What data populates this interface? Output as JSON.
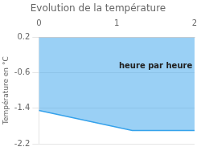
{
  "chart_data": {
    "type": "area",
    "title": "Evolution de la température",
    "ylabel": "Température en °C",
    "annotation": {
      "text": "heure par heure",
      "x": 1.5,
      "y": -0.45
    },
    "x": [
      0,
      1.2,
      2.0
    ],
    "values": [
      -1.45,
      -1.9,
      -1.9
    ],
    "y_top": 0.2,
    "xlim": [
      0,
      2
    ],
    "ylim": [
      -2.2,
      0.2
    ],
    "xticks": [
      0,
      1,
      2
    ],
    "yticks": [
      0.2,
      -0.6,
      -1.4,
      -2.2
    ],
    "grid": "y"
  }
}
